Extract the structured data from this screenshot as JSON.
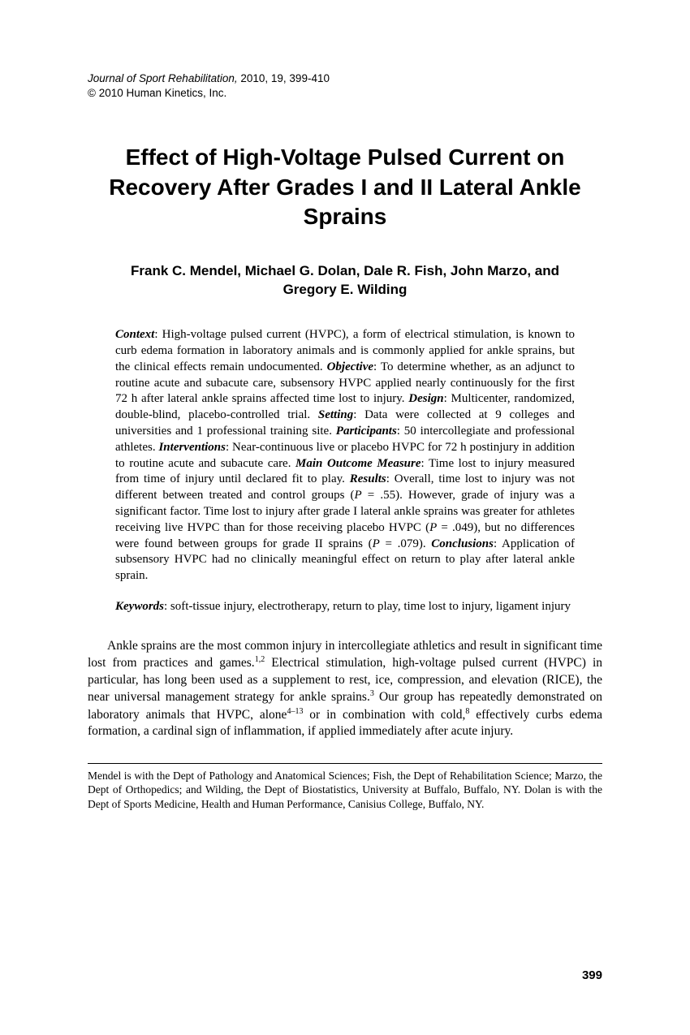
{
  "meta": {
    "journal_line": "Journal of Sport Rehabilitation,",
    "citation": " 2010, 19, 399-410",
    "copyright": "© 2010 Human Kinetics, Inc."
  },
  "title": "Effect of High-Voltage Pulsed Current on Recovery After Grades I and II Lateral Ankle Sprains",
  "authors": "Frank C. Mendel, Michael G. Dolan, Dale R. Fish, John Marzo, and Gregory E. Wilding",
  "abstract": {
    "context_label": "Context",
    "context_text": ": High-voltage pulsed current (HVPC), a form of electrical stimulation, is known to curb edema formation in laboratory animals and is commonly applied for ankle sprains, but the clinical effects remain undocumented. ",
    "objective_label": "Objective",
    "objective_text": ": To determine whether, as an adjunct to routine acute and subacute care, subsensory HVPC applied nearly continuously for the first 72 h after lateral ankle sprains affected time lost to injury. ",
    "design_label": "Design",
    "design_text": ": Multicenter, randomized, double-blind, placebo-controlled trial. ",
    "setting_label": "Setting",
    "setting_text": ": Data were collected at 9 colleges and universities and 1 professional training site. ",
    "participants_label": "Participants",
    "participants_text": ": 50 intercollegiate and professional athletes. ",
    "interventions_label": "Interventions",
    "interventions_text": ": Near-continuous live or placebo HVPC for 72 h postinjury in addition to routine acute and subacute care. ",
    "outcome_label": "Main Outcome Measure",
    "outcome_text": ": Time lost to injury measured from time of injury until declared fit to play. ",
    "results_label": "Results",
    "results_text": ": Overall, time lost to injury was not different between treated and control groups (P = .55). However, grade of injury was a significant factor. Time lost to injury after grade I lateral ankle sprains was greater for athletes receiving live HVPC than for those receiving placebo HVPC (P = .049), but no differences were found between groups for grade II sprains (P = .079). ",
    "conclusions_label": "Conclusions",
    "conclusions_text": ": Application of subsensory HVPC had no clinically meaningful effect on return to play after lateral ankle sprain."
  },
  "keywords": {
    "label": "Keywords",
    "text": ": soft-tissue injury, electrotherapy, return to play, time lost to injury, ligament injury"
  },
  "body": {
    "p1_a": "Ankle sprains are the most common injury in intercollegiate athletics and result in significant time lost from practices and games.",
    "p1_sup1": "1,2",
    "p1_b": " Electrical stimulation, high-voltage pulsed current (HVPC) in particular, has long been used as a supplement to rest, ice, compression, and elevation (RICE), the near universal management strategy for ankle sprains.",
    "p1_sup2": "3",
    "p1_c": " Our group has repeatedly demonstrated on laboratory animals that HVPC, alone",
    "p1_sup3": "4–13",
    "p1_d": " or in combination with cold,",
    "p1_sup4": "8",
    "p1_e": " effectively curbs edema formation, a cardinal sign of inflammation, if applied immediately after acute injury."
  },
  "footnote": "Mendel is with the Dept of Pathology and Anatomical Sciences; Fish, the Dept of Rehabilitation Science; Marzo, the Dept of Orthopedics; and Wilding, the Dept of Biostatistics, University at Buffalo, Buffalo, NY. Dolan is with the Dept of Sports Medicine, Health and Human Performance, Canisius College, Buffalo, NY.",
  "page_number": "399"
}
